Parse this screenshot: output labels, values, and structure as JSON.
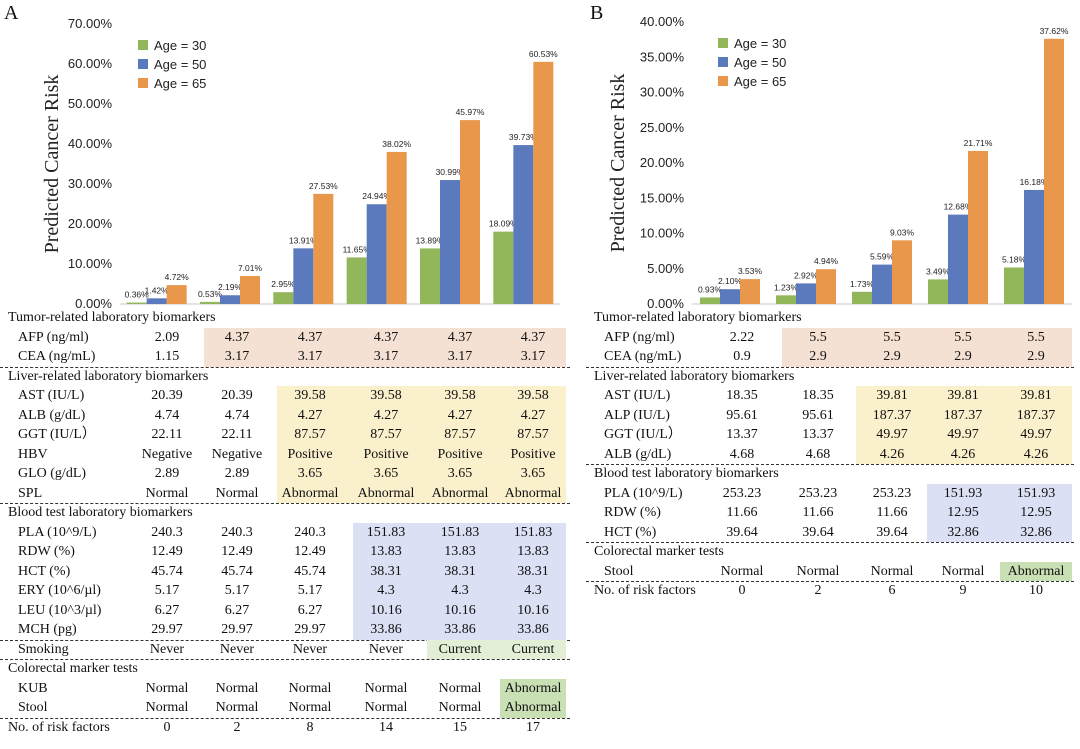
{
  "panels": [
    {
      "letter": "A",
      "chart_data": {
        "type": "bar",
        "ylabel": "Predicted Cancer Risk",
        "ylim": [
          0,
          70
        ],
        "yticks": [
          "0.00%",
          "10.00%",
          "20.00%",
          "30.00%",
          "40.00%",
          "50.00%",
          "60.00%",
          "70.00%"
        ],
        "legend_position": "top-left",
        "categories": [
          "0",
          "2",
          "8",
          "14",
          "15",
          "17"
        ],
        "series": [
          {
            "name": "Age = 30",
            "color": "#92b75a",
            "values": [
              0.36,
              0.53,
              2.95,
              11.65,
              13.89,
              18.09
            ],
            "labels": [
              "0.36%",
              "0.53%",
              "2.95%",
              "11.65%",
              "13.89%",
              "18.09%"
            ]
          },
          {
            "name": "Age = 50",
            "color": "#5b79bd",
            "values": [
              1.42,
              2.19,
              13.91,
              24.94,
              30.99,
              39.73
            ],
            "labels": [
              "1.42%",
              "2.19%",
              "13.91%",
              "24.94%",
              "30.99%",
              "39.73%"
            ]
          },
          {
            "name": "Age = 65",
            "color": "#e9974a",
            "values": [
              4.72,
              7.01,
              27.53,
              38.02,
              45.97,
              60.53
            ],
            "labels": [
              "4.72%",
              "7.01%",
              "27.53%",
              "38.02%",
              "45.97%",
              "60.53%"
            ]
          }
        ]
      },
      "sections": [
        {
          "title": "Tumor-related laboratory biomarkers",
          "shade": "#f4e1d4",
          "shade_cols": [
            1,
            5
          ],
          "rows": [
            {
              "label": "AFP (ng/ml)",
              "values": [
                "2.09",
                "4.37",
                "4.37",
                "4.37",
                "4.37",
                "4.37"
              ]
            },
            {
              "label": "CEA (ng/mL)",
              "values": [
                "1.15",
                "3.17",
                "3.17",
                "3.17",
                "3.17",
                "3.17"
              ]
            }
          ]
        },
        {
          "title": "Liver-related laboratory biomarkers",
          "shade": "#fbf0cc",
          "shade_cols": [
            2,
            5
          ],
          "rows": [
            {
              "label": "AST (IU/L)",
              "values": [
                "20.39",
                "20.39",
                "39.58",
                "39.58",
                "39.58",
                "39.58"
              ]
            },
            {
              "label": "ALB (g/dL)",
              "values": [
                "4.74",
                "4.74",
                "4.27",
                "4.27",
                "4.27",
                "4.27"
              ]
            },
            {
              "label": "GGT (IU/L）",
              "values": [
                "22.11",
                "22.11",
                "87.57",
                "87.57",
                "87.57",
                "87.57"
              ]
            },
            {
              "label": "HBV",
              "values": [
                "Negative",
                "Negative",
                "Positive",
                "Positive",
                "Positive",
                "Positive"
              ]
            },
            {
              "label": "GLO (g/dL)",
              "values": [
                "2.89",
                "2.89",
                "3.65",
                "3.65",
                "3.65",
                "3.65"
              ]
            },
            {
              "label": "SPL",
              "values": [
                "Normal",
                "Normal",
                "Abnormal",
                "Abnormal",
                "Abnormal",
                "Abnormal"
              ]
            }
          ]
        },
        {
          "title": "Blood test laboratory biomarkers",
          "shade": "#dbe0f4",
          "shade_cols": [
            3,
            5
          ],
          "rows": [
            {
              "label": "PLA (10^9/L)",
              "values": [
                "240.3",
                "240.3",
                "240.3",
                "151.83",
                "151.83",
                "151.83"
              ]
            },
            {
              "label": "RDW (%)",
              "values": [
                "12.49",
                "12.49",
                "12.49",
                "13.83",
                "13.83",
                "13.83"
              ]
            },
            {
              "label": "HCT (%)",
              "values": [
                "45.74",
                "45.74",
                "45.74",
                "38.31",
                "38.31",
                "38.31"
              ]
            },
            {
              "label": "ERY (10^6/µl)",
              "values": [
                "5.17",
                "5.17",
                "5.17",
                "4.3",
                "4.3",
                "4.3"
              ]
            },
            {
              "label": "LEU (10^3/µl)",
              "values": [
                "6.27",
                "6.27",
                "6.27",
                "10.16",
                "10.16",
                "10.16"
              ]
            },
            {
              "label": "MCH (pg)",
              "values": [
                "29.97",
                "29.97",
                "29.97",
                "33.86",
                "33.86",
                "33.86"
              ]
            }
          ]
        },
        {
          "title": "",
          "shade": "#e2eed5",
          "shade_cols": [
            4,
            5
          ],
          "rows": [
            {
              "label": "Smoking",
              "values": [
                "Never",
                "Never",
                "Never",
                "Never",
                "Current",
                "Current"
              ]
            }
          ]
        },
        {
          "title": "Colorectal marker tests",
          "shade": "#c9e0b4",
          "shade_cols": [
            5,
            5
          ],
          "rows": [
            {
              "label": "KUB",
              "values": [
                "Normal",
                "Normal",
                "Normal",
                "Normal",
                "Normal",
                "Abnormal"
              ]
            },
            {
              "label": "Stool",
              "values": [
                "Normal",
                "Normal",
                "Normal",
                "Normal",
                "Normal",
                "Abnormal"
              ]
            }
          ]
        }
      ],
      "risk_factors": {
        "label": "No. of risk factors",
        "values": [
          "0",
          "2",
          "8",
          "14",
          "15",
          "17"
        ]
      }
    },
    {
      "letter": "B",
      "chart_data": {
        "type": "bar",
        "ylabel": "Predicted Cancer Risk",
        "ylim": [
          0,
          40
        ],
        "yticks": [
          "0.00%",
          "5.00%",
          "10.00%",
          "15.00%",
          "20.00%",
          "25.00%",
          "30.00%",
          "35.00%",
          "40.00%"
        ],
        "legend_position": "top-left",
        "categories": [
          "0",
          "2",
          "6",
          "9",
          "10"
        ],
        "series": [
          {
            "name": "Age = 30",
            "color": "#92b75a",
            "values": [
              0.93,
              1.23,
              1.73,
              3.49,
              5.18
            ],
            "labels": [
              "0.93%",
              "1.23%",
              "1.73%",
              "3.49%",
              "5.18%"
            ]
          },
          {
            "name": "Age = 50",
            "color": "#5b79bd",
            "values": [
              2.1,
              2.92,
              5.59,
              12.68,
              16.18
            ],
            "labels": [
              "2.10%",
              "2.92%",
              "5.59%",
              "12.68%",
              "16.18%"
            ]
          },
          {
            "name": "Age = 65",
            "color": "#e9974a",
            "values": [
              3.53,
              4.94,
              9.03,
              21.71,
              37.62
            ],
            "labels": [
              "3.53%",
              "4.94%",
              "9.03%",
              "21.71%",
              "37.62%"
            ]
          }
        ]
      },
      "sections": [
        {
          "title": "Tumor-related laboratory biomarkers",
          "shade": "#f4e1d4",
          "shade_cols": [
            1,
            4
          ],
          "rows": [
            {
              "label": "AFP (ng/ml)",
              "values": [
                "2.22",
                "5.5",
                "5.5",
                "5.5",
                "5.5"
              ]
            },
            {
              "label": "CEA (ng/mL)",
              "values": [
                "0.9",
                "2.9",
                "2.9",
                "2.9",
                "2.9"
              ]
            }
          ]
        },
        {
          "title": "Liver-related laboratory biomarkers",
          "shade": "#fbf0cc",
          "shade_cols": [
            2,
            4
          ],
          "rows": [
            {
              "label": "AST (IU/L)",
              "values": [
                "18.35",
                "18.35",
                "39.81",
                "39.81",
                "39.81"
              ]
            },
            {
              "label": "ALP (IU/L)",
              "values": [
                "95.61",
                "95.61",
                "187.37",
                "187.37",
                "187.37"
              ]
            },
            {
              "label": "GGT (IU/L）",
              "values": [
                "13.37",
                "13.37",
                "49.97",
                "49.97",
                "49.97"
              ]
            },
            {
              "label": "ALB (g/dL)",
              "values": [
                "4.68",
                "4.68",
                "4.26",
                "4.26",
                "4.26"
              ]
            }
          ]
        },
        {
          "title": "Blood test laboratory biomarkers",
          "shade": "#dbe0f4",
          "shade_cols": [
            3,
            4
          ],
          "rows": [
            {
              "label": "PLA (10^9/L)",
              "values": [
                "253.23",
                "253.23",
                "253.23",
                "151.93",
                "151.93"
              ]
            },
            {
              "label": "RDW (%)",
              "values": [
                "11.66",
                "11.66",
                "11.66",
                "12.95",
                "12.95"
              ]
            },
            {
              "label": "HCT (%)",
              "values": [
                "39.64",
                "39.64",
                "39.64",
                "32.86",
                "32.86"
              ]
            }
          ]
        },
        {
          "title": "Colorectal marker tests",
          "shade": "#c9e0b4",
          "shade_cols": [
            4,
            4
          ],
          "rows": [
            {
              "label": "Stool",
              "values": [
                "Normal",
                "Normal",
                "Normal",
                "Normal",
                "Abnormal"
              ]
            }
          ]
        }
      ],
      "risk_factors": {
        "label": "No. of risk factors",
        "values": [
          "0",
          "2",
          "6",
          "9",
          "10"
        ]
      }
    }
  ]
}
